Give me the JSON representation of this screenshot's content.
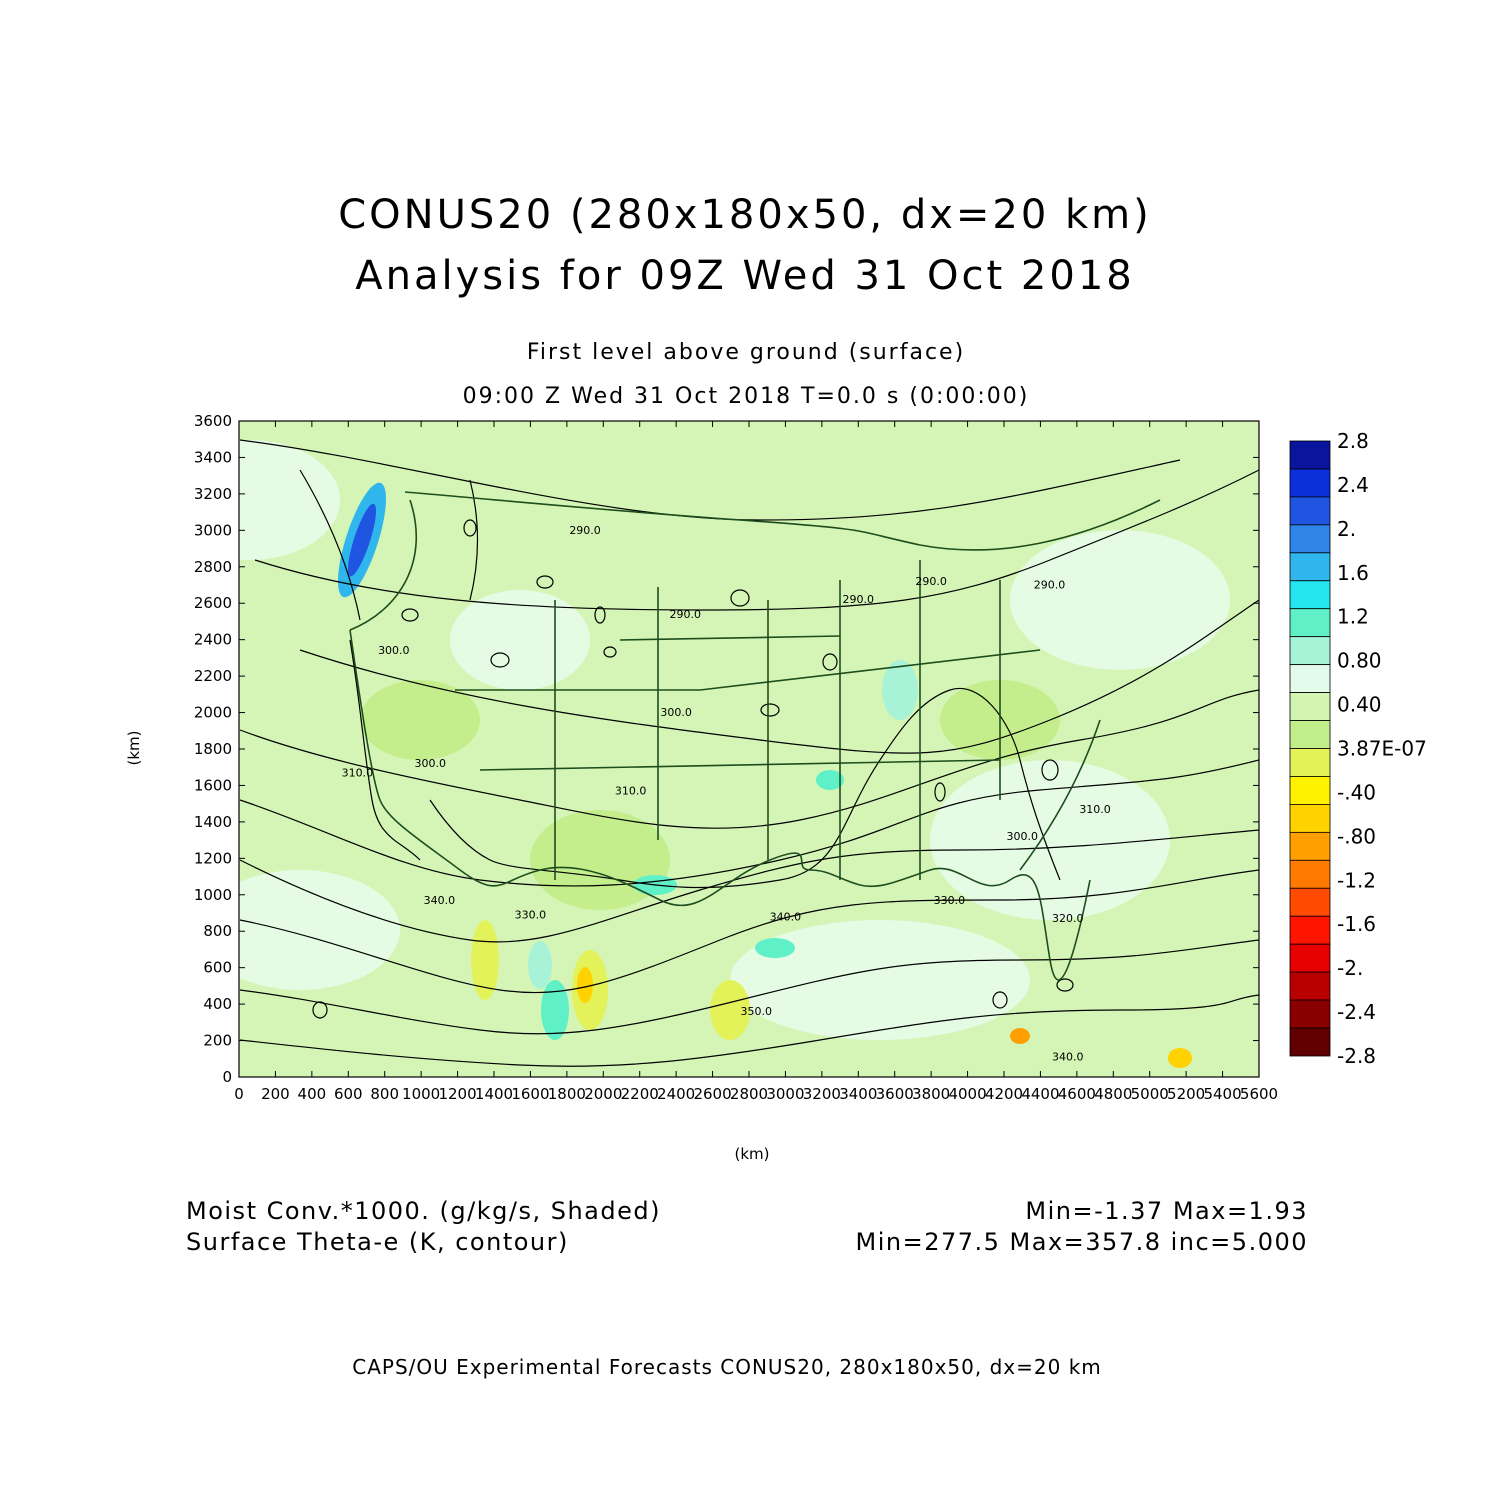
{
  "title": {
    "line1": "CONUS20 (280x180x50, dx=20 km)",
    "line2": "Analysis for 09Z Wed 31 Oct 2018"
  },
  "subtitle": {
    "level": "First level above ground (surface)",
    "time": "09:00 Z Wed 31 Oct 2018    T=0.0 s (0:00:00)"
  },
  "chart_data": {
    "type": "heatmap",
    "xlabel": "(km)",
    "ylabel": "(km)",
    "xlim": [
      0,
      5600
    ],
    "ylim": [
      0,
      3600
    ],
    "x_ticks": [
      "0",
      "200",
      "400",
      "600",
      "800",
      "1000",
      "1200",
      "1400",
      "1600",
      "1800",
      "2000",
      "2200",
      "2400",
      "2600",
      "2800",
      "3000",
      "3200",
      "3400",
      "3600",
      "3800",
      "4000",
      "4200",
      "4400",
      "4600",
      "4800",
      "5000",
      "5200",
      "5400",
      "5600"
    ],
    "y_ticks": [
      "0",
      "200",
      "400",
      "600",
      "800",
      "1000",
      "1200",
      "1400",
      "1600",
      "1800",
      "2000",
      "2200",
      "2400",
      "2600",
      "2800",
      "3000",
      "3200",
      "3400",
      "3600"
    ],
    "shaded_field": {
      "label": "Moist Conv.*1000. (g/kg/s, Shaded)",
      "stats": "Min=-1.37 Max=1.93"
    },
    "contour_field": {
      "label": "Surface Theta-e (K, contour)",
      "stats": "Min=277.5 Max=357.8 inc=5.000"
    },
    "contour_labels": [
      {
        "text": "290.0",
        "x": 1900,
        "y": 2980
      },
      {
        "text": "290.0",
        "x": 2450,
        "y": 2520
      },
      {
        "text": "290.0",
        "x": 3400,
        "y": 2600
      },
      {
        "text": "290.0",
        "x": 3800,
        "y": 2700
      },
      {
        "text": "290.0",
        "x": 4450,
        "y": 2680
      },
      {
        "text": "300.0",
        "x": 850,
        "y": 2320
      },
      {
        "text": "300.0",
        "x": 1050,
        "y": 1700
      },
      {
        "text": "300.0",
        "x": 2400,
        "y": 1980
      },
      {
        "text": "300.0",
        "x": 4300,
        "y": 1300
      },
      {
        "text": "310.0",
        "x": 650,
        "y": 1650
      },
      {
        "text": "310.0",
        "x": 2150,
        "y": 1550
      },
      {
        "text": "310.0",
        "x": 4700,
        "y": 1450
      },
      {
        "text": "320.0",
        "x": 4550,
        "y": 850
      },
      {
        "text": "330.0",
        "x": 1600,
        "y": 870
      },
      {
        "text": "330.0",
        "x": 3900,
        "y": 950
      },
      {
        "text": "340.0",
        "x": 1100,
        "y": 950
      },
      {
        "text": "340.0",
        "x": 3000,
        "y": 860
      },
      {
        "text": "340.0",
        "x": 4550,
        "y": 90
      },
      {
        "text": "350.0",
        "x": 2840,
        "y": 340
      }
    ],
    "colorbar": {
      "labels": [
        "2.8",
        "2.4",
        "2.",
        "1.6",
        "1.2",
        "0.80",
        "0.40",
        "3.87E-07",
        "-.40",
        "-.80",
        "-1.2",
        "-1.6",
        "-2.",
        "-2.4",
        "-2.8"
      ],
      "colors": [
        "#08159c",
        "#0b2fd8",
        "#1f55e0",
        "#2f85e8",
        "#2fb6ec",
        "#23e6f0",
        "#5ff0c8",
        "#a8f3d8",
        "#e2fbea",
        "#d2f5b4",
        "#c2ee8a",
        "#e4f25a",
        "#fff200",
        "#ffd200",
        "#ffa000",
        "#ff7a00",
        "#ff4a00",
        "#ff1400",
        "#e60000",
        "#b80000",
        "#8a0000",
        "#600000"
      ]
    }
  },
  "footer": "CAPS/OU Experimental Forecasts  CONUS20, 280x180x50, dx=20 km"
}
